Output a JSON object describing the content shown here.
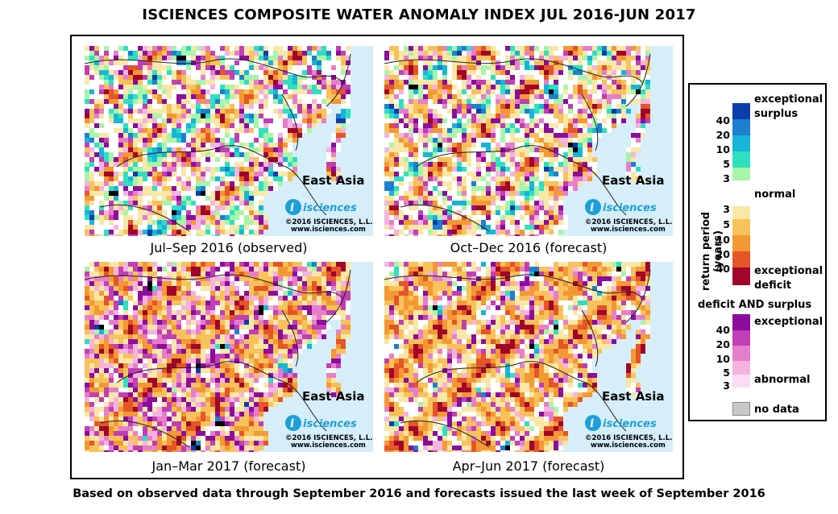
{
  "title": "ISCIENCES COMPOSITE WATER ANOMALY INDEX JUL 2016-JUN 2017",
  "footer": "Based on observed data through September 2016 and forecasts issued the last week of September 2016",
  "panels": [
    {
      "caption": "Jul–Sep 2016 (observed)",
      "region": "East Asia",
      "brand": "isciences",
      "copyright": "©2016 ISCIENCES, L.L.C.",
      "url": "www.isciences.com",
      "seed": 11,
      "mix": "observed"
    },
    {
      "caption": "Oct–Dec 2016 (forecast)",
      "region": "East Asia",
      "brand": "isciences",
      "copyright": "©2016 ISCIENCES, L.L.C.",
      "url": "www.isciences.com",
      "seed": 23,
      "mix": "autumn"
    },
    {
      "caption": "Jan–Mar 2017 (forecast)",
      "region": "East Asia",
      "brand": "isciences",
      "copyright": "©2016 ISCIENCES, L.L.C.",
      "url": "www.isciences.com",
      "seed": 37,
      "mix": "winter"
    },
    {
      "caption": "Apr–Jun 2017 (forecast)",
      "region": "East Asia",
      "brand": "isciences",
      "copyright": "©2016 ISCIENCES, L.L.C.",
      "url": "www.isciences.com",
      "seed": 51,
      "mix": "spring"
    }
  ],
  "legend": {
    "axis_label": "return period (years)",
    "exceptional_surplus": [
      "exceptional",
      "surplus"
    ],
    "normal": "normal",
    "exceptional_deficit": [
      "exceptional",
      "deficit"
    ],
    "combo_heading": "deficit AND surplus",
    "combo_exceptional": "exceptional",
    "combo_abnormal": "abnormal",
    "no_data": "no data",
    "surplus_ticks": [
      "40",
      "20",
      "10",
      "5",
      "3"
    ],
    "deficit_ticks": [
      "3",
      "5",
      "10",
      "20",
      "40"
    ],
    "combo_ticks": [
      "40",
      "20",
      "10",
      "5",
      "3"
    ],
    "surplus_colors": [
      "#0a3ea8",
      "#1d7fd0",
      "#17b5d8",
      "#2ee0c0",
      "#a7f5a8"
    ],
    "deficit_colors": [
      "#f8e7a6",
      "#f7c25a",
      "#f39833",
      "#e55528",
      "#a0052a"
    ],
    "combo_colors": [
      "#8c0c9e",
      "#c13eb4",
      "#e77ecb",
      "#f4b3e0",
      "#fbdcf2"
    ],
    "normal_color": "#ffffff",
    "no_data_color": "#c8c8c8",
    "ocean_color": "#d6eefa"
  }
}
